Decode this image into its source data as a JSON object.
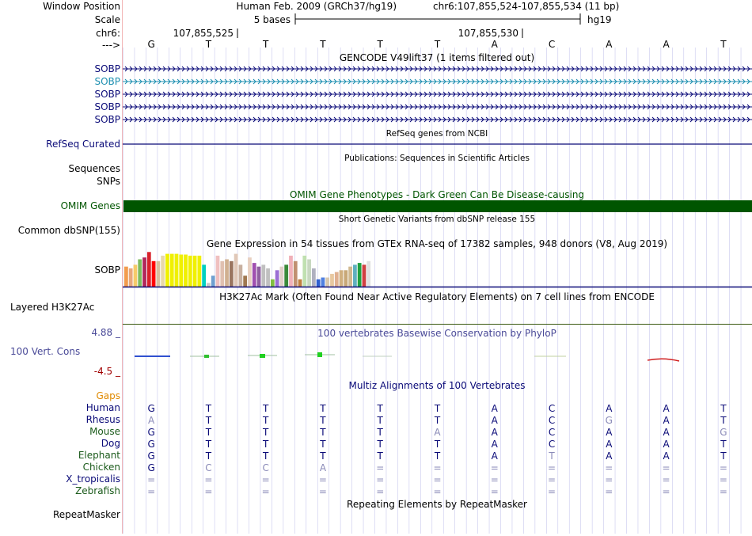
{
  "header": {
    "window_label": "Window Position",
    "scale_label": "Scale",
    "chrom_label": "chr6:",
    "strand_label": "--->",
    "assembly_title": "Human Feb. 2009 (GRCh37/hg19)",
    "position": "chr6:107,855,524-107,855,534 (11 bp)",
    "scale_text": "5 bases",
    "db": "hg19",
    "coord_a": "107,855,525",
    "coord_b": "107,855,530"
  },
  "sequence": [
    "G",
    "T",
    "T",
    "T",
    "T",
    "T",
    "A",
    "C",
    "A",
    "A",
    "T"
  ],
  "gencode": {
    "title": "GENCODE V49lift37 (1 items filtered out)",
    "rows": [
      {
        "label": "SOBP",
        "color": "#0a0a78"
      },
      {
        "label": "SOBP",
        "color": "#1d8fb0"
      },
      {
        "label": "SOBP",
        "color": "#0a0a78"
      },
      {
        "label": "SOBP",
        "color": "#0a0a78"
      },
      {
        "label": "SOBP",
        "color": "#0a0a78"
      }
    ]
  },
  "refseq": {
    "title": "RefSeq genes from NCBI",
    "label": "RefSeq Curated"
  },
  "publications": {
    "title": "Publications: Sequences in Scientific Articles",
    "label": "Sequences"
  },
  "snps_label": "SNPs",
  "omim": {
    "title": "OMIM Gene Phenotypes - Dark Green Can Be Disease-causing",
    "label": "OMIM Genes",
    "color": "#005500"
  },
  "dbsnp": {
    "title": "Short Genetic Variants from dbSNP release 155",
    "label": "Common dbSNP(155)"
  },
  "gtex": {
    "title": "Gene Expression in 54 tissues from GTEx RNA-seq of 17382 samples, 948 donors (V8, Aug 2019)",
    "label": "SOBP",
    "values": [
      0.55,
      0.5,
      0.6,
      0.75,
      0.8,
      0.95,
      0.7,
      0.7,
      0.85,
      0.9,
      0.9,
      0.9,
      0.88,
      0.88,
      0.85,
      0.85,
      0.85,
      0.6,
      0.1,
      0.3,
      0.85,
      0.7,
      0.75,
      0.7,
      0.9,
      0.6,
      0.3,
      0.8,
      0.65,
      0.55,
      0.6,
      0.5,
      0.2,
      0.45,
      0.55,
      0.6,
      0.85,
      0.7,
      0.2,
      0.85,
      0.75,
      0.5,
      0.2,
      0.25,
      0.25,
      0.35,
      0.4,
      0.45,
      0.45,
      0.55,
      0.6,
      0.65,
      0.6,
      0.7
    ],
    "colors": [
      "#f29c4e",
      "#e8a87c",
      "#f6cb6a",
      "#7dbb5e",
      "#b0275b",
      "#d8202b",
      "#ff0000",
      "#d8c0a0",
      "#e8d8a8",
      "#f0f000",
      "#f0f000",
      "#f0f000",
      "#f0f000",
      "#f0f000",
      "#f0f000",
      "#f0f000",
      "#f0f000",
      "#00d0c0",
      "#c8c8c8",
      "#70a0d0",
      "#f0c0c0",
      "#e0c0b0",
      "#d0b090",
      "#9a7560",
      "#e0c8b8",
      "#c8b0a0",
      "#a07850",
      "#e8d0c0",
      "#a050b0",
      "#9060a0",
      "#c0c0c0",
      "#c0c0c0",
      "#80c040",
      "#9b6fd5",
      "#e0d0c8",
      "#3a8a3a",
      "#f0b0b8",
      "#c09070",
      "#c08040",
      "#c0e0b0",
      "#c8d8c0",
      "#b0b0c0",
      "#3060d0",
      "#5080e0",
      "#d8c8b0",
      "#e8c8a0",
      "#e0b090",
      "#d0b080",
      "#c8a878",
      "#d0b890",
      "#60b0c0",
      "#20a040",
      "#d04040",
      "#e0e0e0"
    ]
  },
  "h3k27ac": {
    "title": "H3K27Ac Mark (Often Found Near Active Regulatory Elements) on 7 cell lines from ENCODE",
    "label": "Layered H3K27Ac"
  },
  "phylop": {
    "title": "100 vertebrates Basewise Conservation by PhyloP",
    "label": "100 Vert. Cons",
    "max": "4.88 _",
    "min": "-4.5 _"
  },
  "multiz": {
    "title": "Multiz Alignments of 100 Vertebrates",
    "gaps_label": "Gaps",
    "species": [
      {
        "name": "Human",
        "color": "#0a0a78",
        "bases": [
          "G",
          "T",
          "T",
          "T",
          "T",
          "T",
          "A",
          "C",
          "A",
          "A",
          "T"
        ],
        "faded": [
          0,
          0,
          0,
          0,
          0,
          0,
          0,
          0,
          0,
          0,
          0
        ]
      },
      {
        "name": "Rhesus",
        "color": "#0a0a78",
        "bases": [
          "A",
          "T",
          "T",
          "T",
          "T",
          "T",
          "A",
          "C",
          "G",
          "A",
          "T"
        ],
        "faded": [
          1,
          0,
          0,
          0,
          0,
          0,
          0,
          0,
          1,
          0,
          0
        ]
      },
      {
        "name": "Mouse",
        "color": "#1a5a1a",
        "bases": [
          "G",
          "T",
          "T",
          "T",
          "T",
          "A",
          "A",
          "C",
          "A",
          "A",
          "G"
        ],
        "faded": [
          0,
          0,
          0,
          0,
          0,
          1,
          0,
          0,
          0,
          0,
          1
        ]
      },
      {
        "name": "Dog",
        "color": "#0a0a78",
        "bases": [
          "G",
          "T",
          "T",
          "T",
          "T",
          "T",
          "A",
          "C",
          "A",
          "A",
          "T"
        ],
        "faded": [
          0,
          0,
          0,
          0,
          0,
          0,
          0,
          0,
          0,
          0,
          0
        ]
      },
      {
        "name": "Elephant",
        "color": "#1a5a1a",
        "bases": [
          "G",
          "T",
          "T",
          "T",
          "T",
          "T",
          "A",
          "T",
          "A",
          "A",
          "T"
        ],
        "faded": [
          0,
          0,
          0,
          0,
          0,
          0,
          0,
          1,
          0,
          0,
          0
        ]
      },
      {
        "name": "Chicken",
        "color": "#1a5a1a",
        "bases": [
          "G",
          "C",
          "C",
          "A",
          "=",
          "=",
          "=",
          "=",
          "=",
          "=",
          "="
        ],
        "faded": [
          0,
          1,
          1,
          1,
          1,
          1,
          1,
          1,
          1,
          1,
          1
        ]
      },
      {
        "name": "X_tropicalis",
        "color": "#0a0a78",
        "bases": [
          "=",
          "=",
          "=",
          "=",
          "=",
          "=",
          "=",
          "=",
          "=",
          "=",
          "="
        ],
        "faded": [
          1,
          1,
          1,
          1,
          1,
          1,
          1,
          1,
          1,
          1,
          1
        ]
      },
      {
        "name": "Zebrafish",
        "color": "#1a5a1a",
        "bases": [
          "=",
          "=",
          "=",
          "=",
          "=",
          "=",
          "=",
          "=",
          "=",
          "=",
          "="
        ],
        "faded": [
          1,
          1,
          1,
          1,
          1,
          1,
          1,
          1,
          1,
          1,
          1
        ]
      }
    ]
  },
  "repeatmasker": {
    "title": "Repeating Elements by RepeatMasker",
    "label": "RepeatMasker"
  },
  "colors": {
    "navy": "#0a0a78",
    "orange": "#e08a00",
    "red": "#a00000",
    "purple": "#4a4a98",
    "grid": "#c8c8ee",
    "faded": "#8a8ab8"
  }
}
